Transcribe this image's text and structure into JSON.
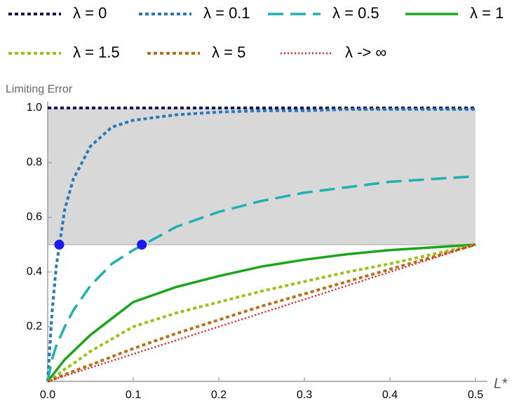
{
  "chart_data": {
    "type": "line",
    "y_label": "Limiting Error",
    "x_label": "L*",
    "x": [
      0,
      0.005,
      0.01,
      0.02,
      0.03,
      0.05,
      0.075,
      0.1,
      0.15,
      0.2,
      0.25,
      0.3,
      0.35,
      0.4,
      0.45,
      0.5
    ],
    "series": [
      {
        "name": "λ = 0",
        "color": "#16165a",
        "style": "dashed",
        "values": [
          1,
          1,
          1,
          1,
          1,
          1,
          1,
          1,
          1,
          1,
          1,
          1,
          1,
          1,
          1,
          1
        ]
      },
      {
        "name": "λ = 0.1",
        "color": "#2a78b8",
        "style": "dashed",
        "values": [
          0,
          0.25,
          0.42,
          0.63,
          0.74,
          0.86,
          0.93,
          0.955,
          0.975,
          0.985,
          0.99,
          0.99,
          0.995,
          0.995,
          0.995,
          0.995
        ]
      },
      {
        "name": "λ = 0.5",
        "color": "#20b0b0",
        "style": "longdash",
        "values": [
          0,
          0.08,
          0.13,
          0.2,
          0.26,
          0.35,
          0.43,
          0.48,
          0.565,
          0.62,
          0.66,
          0.69,
          0.71,
          0.73,
          0.74,
          0.75
        ]
      },
      {
        "name": "λ = 1",
        "color": "#1aa51a",
        "style": "solid",
        "values": [
          0,
          0.02,
          0.04,
          0.08,
          0.11,
          0.17,
          0.23,
          0.29,
          0.345,
          0.385,
          0.42,
          0.445,
          0.465,
          0.48,
          0.49,
          0.5
        ]
      },
      {
        "name": "λ = 1.5",
        "color": "#9ac21a",
        "style": "dashed",
        "values": [
          0,
          0.01,
          0.02,
          0.045,
          0.065,
          0.11,
          0.155,
          0.2,
          0.25,
          0.29,
          0.33,
          0.365,
          0.4,
          0.43,
          0.465,
          0.5
        ]
      },
      {
        "name": "λ = 5",
        "color": "#b8711a",
        "style": "dashed",
        "values": [
          0,
          0.005,
          0.012,
          0.025,
          0.037,
          0.06,
          0.09,
          0.12,
          0.175,
          0.225,
          0.275,
          0.32,
          0.365,
          0.41,
          0.455,
          0.5
        ]
      },
      {
        "name": "λ -> ∞",
        "color": "#e02020",
        "style": "dotted",
        "values": [
          0,
          0.005,
          0.01,
          0.02,
          0.03,
          0.05,
          0.075,
          0.1,
          0.15,
          0.2,
          0.25,
          0.3,
          0.35,
          0.4,
          0.45,
          0.5
        ]
      }
    ],
    "points": {
      "color": "#1a1aee",
      "x": [
        0.0135,
        0.11
      ],
      "y": [
        0.5,
        0.5
      ]
    },
    "band": {
      "color": "#d8d8d8",
      "ylim": [
        0.5,
        1
      ]
    },
    "xlim": [
      0,
      0.5
    ],
    "ylim": [
      0,
      1
    ],
    "xticks": [
      {
        "value": 0,
        "label": "0.0"
      },
      0.1,
      0.2,
      0.3,
      0.4,
      0.5
    ],
    "yticks": [
      0.2,
      0.4,
      0.6,
      0.8,
      {
        "value": 1,
        "label": "1.0"
      }
    ],
    "legend": "top"
  }
}
